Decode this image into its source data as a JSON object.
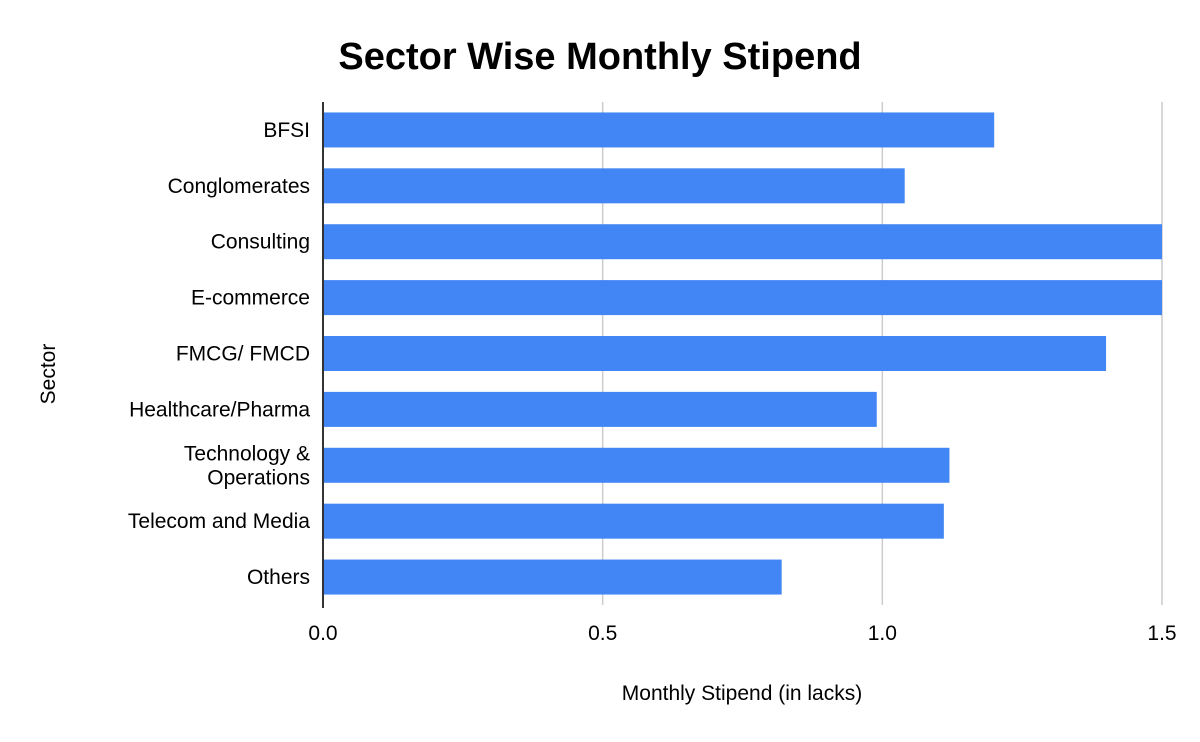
{
  "chart_data": {
    "type": "bar",
    "orientation": "horizontal",
    "title": "Sector Wise Monthly Stipend",
    "xlabel": "Monthly Stipend (in lacks)",
    "ylabel": "Sector",
    "categories": [
      "BFSI",
      "Conglomerates",
      "Consulting",
      "E-commerce",
      "FMCG/ FMCD",
      "Healthcare/Pharma",
      "Technology & Operations",
      "Telecom and Media",
      "Others"
    ],
    "series": [
      {
        "values": [
          1.2,
          1.04,
          1.5,
          1.5,
          1.4,
          0.99,
          1.12,
          1.11,
          0.82
        ]
      }
    ],
    "xlim": [
      0,
      1.5
    ],
    "xticks": [
      0.0,
      0.5,
      1.0,
      1.5
    ],
    "xtick_labels": [
      "0.0",
      "0.5",
      "1.0",
      "1.5"
    ],
    "grid": true,
    "legend": "none",
    "bar_color": "#4285f4"
  }
}
